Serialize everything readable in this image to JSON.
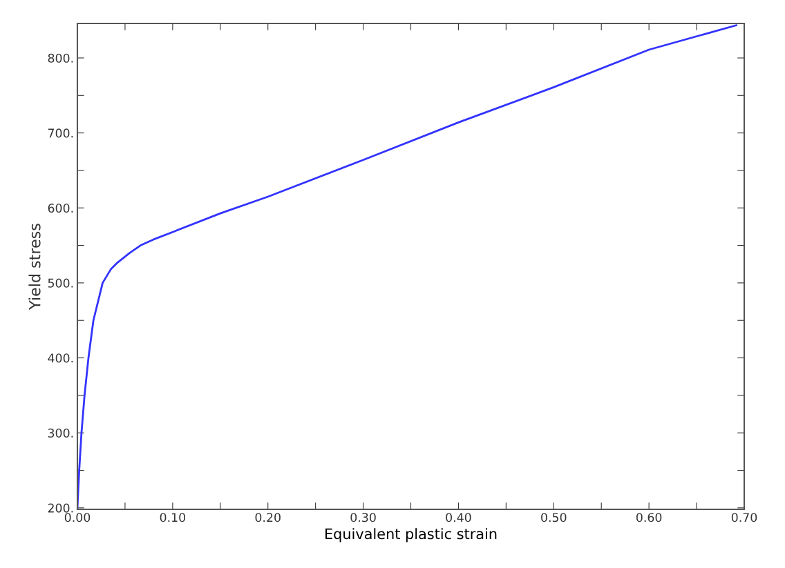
{
  "chart_data": {
    "type": "line",
    "xlabel": "Equivalent plastic strain",
    "ylabel": "Yield stress",
    "xlim": [
      0,
      0.7
    ],
    "ylim": [
      198,
      846
    ],
    "xticks": [
      {
        "value": 0,
        "label": "0.00"
      },
      {
        "value": 0.05,
        "label": null
      },
      {
        "value": 0.1,
        "label": "0.10"
      },
      {
        "value": 0.15,
        "label": null
      },
      {
        "value": 0.2,
        "label": "0.20"
      },
      {
        "value": 0.25,
        "label": null
      },
      {
        "value": 0.3,
        "label": "0.30"
      },
      {
        "value": 0.35,
        "label": null
      },
      {
        "value": 0.4,
        "label": "0.40"
      },
      {
        "value": 0.45,
        "label": null
      },
      {
        "value": 0.5,
        "label": "0.50"
      },
      {
        "value": 0.55,
        "label": null
      },
      {
        "value": 0.6,
        "label": "0.60"
      },
      {
        "value": 0.65,
        "label": null
      },
      {
        "value": 0.7,
        "label": "0.70"
      }
    ],
    "yticks": [
      {
        "value": 200,
        "label": "200."
      },
      {
        "value": 250,
        "label": null
      },
      {
        "value": 300,
        "label": "300."
      },
      {
        "value": 350,
        "label": null
      },
      {
        "value": 400,
        "label": "400."
      },
      {
        "value": 450,
        "label": null
      },
      {
        "value": 500,
        "label": "500."
      },
      {
        "value": 550,
        "label": null
      },
      {
        "value": 600,
        "label": "600."
      },
      {
        "value": 650,
        "label": null
      },
      {
        "value": 700,
        "label": "700."
      },
      {
        "value": 750,
        "label": null
      },
      {
        "value": 800,
        "label": "800."
      }
    ],
    "grid": false,
    "legend": false,
    "marker": "none",
    "line_style": "solid",
    "series": [
      {
        "color": "#3333ff",
        "x": [
          0,
          0.0019,
          0.0043,
          0.0075,
          0.0116,
          0.0168,
          0.0265,
          0.035,
          0.042,
          0.055,
          0.0663,
          0.08,
          0.1024,
          0.1506,
          0.2,
          0.3,
          0.4,
          0.5,
          0.6,
          0.6917
        ],
        "values": [
          200,
          250,
          300,
          350,
          400,
          450,
          500,
          518,
          527,
          540,
          550,
          558,
          569,
          593,
          615,
          664,
          714,
          761,
          811,
          843.6
        ]
      }
    ]
  }
}
